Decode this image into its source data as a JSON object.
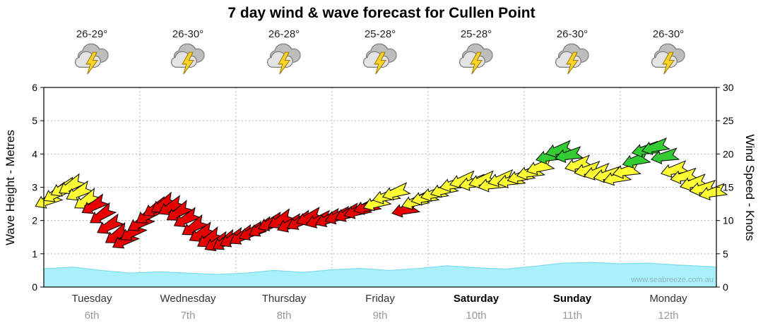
{
  "title": "7 day wind & wave forecast for Cullen Point",
  "watermark": "www.seabreeze.com.au",
  "days": [
    {
      "name": "Tuesday",
      "date": "6th",
      "temp": "26-29°",
      "icon": "storm",
      "weekend": false
    },
    {
      "name": "Wednesday",
      "date": "7th",
      "temp": "26-30°",
      "icon": "storm",
      "weekend": false
    },
    {
      "name": "Thursday",
      "date": "8th",
      "temp": "26-28°",
      "icon": "storm",
      "weekend": false
    },
    {
      "name": "Friday",
      "date": "9th",
      "temp": "25-28°",
      "icon": "storm",
      "weekend": false
    },
    {
      "name": "Saturday",
      "date": "10th",
      "temp": "25-28°",
      "icon": "storm",
      "weekend": true
    },
    {
      "name": "Sunday",
      "date": "11th",
      "temp": "26-30°",
      "icon": "storm",
      "weekend": true
    },
    {
      "name": "Monday",
      "date": "12th",
      "temp": "26-30°",
      "icon": "storm",
      "weekend": false
    }
  ],
  "chart_data": {
    "type": "area",
    "overlay": "wind-direction-arrows",
    "title": "7 day wind & wave forecast for Cullen Point",
    "x_axis": {
      "categories": [
        "Tuesday 6th",
        "Wednesday 7th",
        "Thursday 8th",
        "Friday 9th",
        "Saturday 10th",
        "Sunday 11th",
        "Monday 12th"
      ],
      "unit": "days",
      "range": [
        0,
        7
      ],
      "gridlines": "dotted vertical line at each day boundary"
    },
    "left_axis": {
      "label": "Wave Height - Metres",
      "range": [
        0,
        6
      ],
      "ticks": [
        0,
        1,
        2,
        3,
        4,
        5,
        6
      ]
    },
    "right_axis": {
      "label": "Wind Speed - Knots",
      "range": [
        0,
        30
      ],
      "ticks": [
        0,
        5,
        10,
        15,
        20,
        25,
        30
      ]
    },
    "grid": "dotted horizontal gridlines at each metre / 5 knots",
    "wind_color_scale": [
      {
        "color": "#e60000",
        "meaning": "light winds",
        "range_knots": [
          0,
          12.5
        ]
      },
      {
        "color": "#ffff33",
        "meaning": "moderate winds",
        "range_knots": [
          12.5,
          18.8
        ]
      },
      {
        "color": "#33cc33",
        "meaning": "fresh winds",
        "range_knots": [
          18.8,
          30
        ]
      }
    ],
    "wind_series": {
      "name": "Wind Speed - Knots",
      "points_format": [
        "day_offset",
        "knots",
        "arrow_angle_deg"
      ],
      "points": [
        [
          0.04,
          13.0,
          155
        ],
        [
          0.12,
          14.0,
          150
        ],
        [
          0.2,
          14.8,
          153
        ],
        [
          0.28,
          15.2,
          148
        ],
        [
          0.36,
          14.2,
          152
        ],
        [
          0.44,
          13.0,
          147
        ],
        [
          0.52,
          12.2,
          150
        ],
        [
          0.6,
          10.8,
          146
        ],
        [
          0.68,
          9.2,
          150
        ],
        [
          0.76,
          7.8,
          146
        ],
        [
          0.84,
          7.0,
          150
        ],
        [
          0.92,
          8.2,
          148
        ],
        [
          1.0,
          9.6,
          150
        ],
        [
          1.08,
          10.8,
          146
        ],
        [
          1.16,
          11.8,
          150
        ],
        [
          1.24,
          12.4,
          147
        ],
        [
          1.32,
          12.0,
          151
        ],
        [
          1.4,
          11.2,
          147
        ],
        [
          1.48,
          10.2,
          151
        ],
        [
          1.56,
          9.0,
          147
        ],
        [
          1.64,
          8.0,
          151
        ],
        [
          1.72,
          7.2,
          148
        ],
        [
          1.8,
          6.6,
          152
        ],
        [
          1.88,
          6.8,
          148
        ],
        [
          1.96,
          7.2,
          152
        ],
        [
          2.06,
          7.6,
          150
        ],
        [
          2.16,
          8.2,
          154
        ],
        [
          2.26,
          8.8,
          150
        ],
        [
          2.36,
          9.6,
          155
        ],
        [
          2.46,
          10.0,
          151
        ],
        [
          2.56,
          9.4,
          156
        ],
        [
          2.66,
          9.8,
          152
        ],
        [
          2.76,
          10.4,
          157
        ],
        [
          2.86,
          10.0,
          160
        ],
        [
          2.96,
          10.2,
          157
        ],
        [
          3.06,
          10.6,
          160
        ],
        [
          3.16,
          11.0,
          156
        ],
        [
          3.26,
          11.4,
          161
        ],
        [
          3.36,
          12.0,
          164
        ],
        [
          3.46,
          12.6,
          160
        ],
        [
          3.56,
          13.6,
          164
        ],
        [
          3.66,
          14.2,
          161
        ],
        [
          3.76,
          11.6,
          165
        ],
        [
          3.86,
          12.8,
          161
        ],
        [
          3.96,
          13.4,
          165
        ],
        [
          4.06,
          14.0,
          165
        ],
        [
          4.16,
          14.6,
          161
        ],
        [
          4.26,
          15.4,
          166
        ],
        [
          4.36,
          16.0,
          162
        ],
        [
          4.46,
          15.6,
          166
        ],
        [
          4.56,
          16.0,
          162
        ],
        [
          4.66,
          15.4,
          167
        ],
        [
          4.76,
          16.2,
          163
        ],
        [
          4.86,
          16.0,
          167
        ],
        [
          4.96,
          16.6,
          163
        ],
        [
          5.06,
          17.2,
          166
        ],
        [
          5.16,
          18.0,
          162
        ],
        [
          5.26,
          19.6,
          166
        ],
        [
          5.36,
          20.6,
          163
        ],
        [
          5.46,
          19.8,
          167
        ],
        [
          5.56,
          18.4,
          163
        ],
        [
          5.66,
          17.6,
          167
        ],
        [
          5.76,
          17.2,
          164
        ],
        [
          5.86,
          16.8,
          168
        ],
        [
          5.96,
          16.4,
          164
        ],
        [
          6.06,
          17.4,
          167
        ],
        [
          6.16,
          19.0,
          163
        ],
        [
          6.26,
          20.6,
          167
        ],
        [
          6.36,
          21.0,
          164
        ],
        [
          6.46,
          19.6,
          168
        ],
        [
          6.56,
          17.6,
          164
        ],
        [
          6.66,
          16.6,
          168
        ],
        [
          6.76,
          15.6,
          165
        ],
        [
          6.86,
          14.8,
          169
        ],
        [
          6.96,
          14.2,
          165
        ]
      ]
    },
    "wave_series": {
      "name": "Wave Height - Metres",
      "fill": "#aaf0fa",
      "edge": "#7cdcec",
      "points_format": [
        "day_offset",
        "metres"
      ],
      "points": [
        [
          0,
          0.55
        ],
        [
          0.3,
          0.6
        ],
        [
          0.6,
          0.5
        ],
        [
          0.9,
          0.42
        ],
        [
          1.2,
          0.46
        ],
        [
          1.5,
          0.42
        ],
        [
          1.8,
          0.38
        ],
        [
          2.1,
          0.42
        ],
        [
          2.4,
          0.5
        ],
        [
          2.7,
          0.44
        ],
        [
          3.0,
          0.52
        ],
        [
          3.3,
          0.56
        ],
        [
          3.6,
          0.5
        ],
        [
          3.9,
          0.56
        ],
        [
          4.2,
          0.64
        ],
        [
          4.5,
          0.58
        ],
        [
          4.8,
          0.54
        ],
        [
          5.1,
          0.62
        ],
        [
          5.4,
          0.72
        ],
        [
          5.7,
          0.74
        ],
        [
          6.0,
          0.7
        ],
        [
          6.3,
          0.72
        ],
        [
          6.6,
          0.66
        ],
        [
          6.9,
          0.62
        ],
        [
          7.0,
          0.6
        ]
      ]
    }
  }
}
